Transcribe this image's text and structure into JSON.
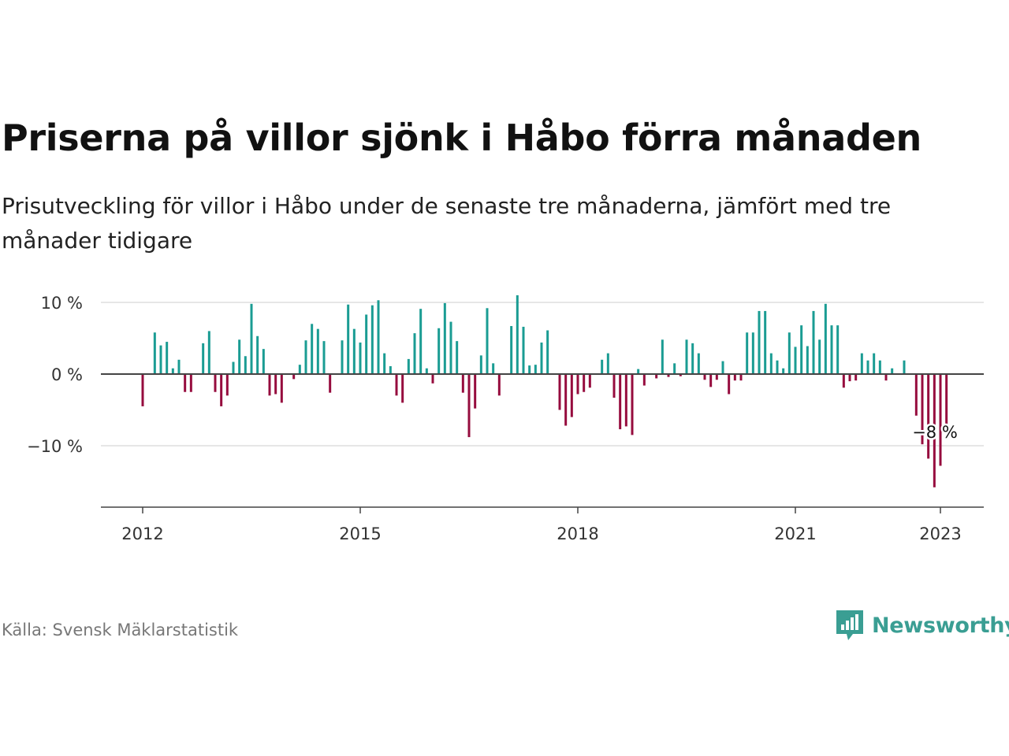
{
  "title": "Priserna på villor sjönk i Håbo förra månaden",
  "subtitle": "Prisutveckling för villor i Håbo under de senaste tre månaderna, jämfört med tre månader tidigare",
  "source": "Källa: Svensk Mäklarstatistik",
  "brand": {
    "name": "Newsworthy",
    "icon": "newsworthy-logo-icon",
    "color": "#3a9e93"
  },
  "colors": {
    "positive": "#1a9c93",
    "negative": "#960c3e",
    "baseline": "#444444",
    "grid": "#dddddd",
    "axis_text": "#333333"
  },
  "chart_data": {
    "type": "bar",
    "x_start": "2012-01",
    "x_end": "2023-01",
    "xticks": [
      "2012",
      "2015",
      "2018",
      "2021",
      "2023"
    ],
    "yticks": [
      "10 %",
      "0 %",
      "−10 %"
    ],
    "ylim": [
      -18.5,
      11.5
    ],
    "annotation": {
      "label": "−8 %",
      "month": "2023-01",
      "value": -8
    },
    "values": [
      -4.5,
      null,
      5.8,
      4,
      4.5,
      0.8,
      2,
      -2.5,
      -2.5,
      null,
      4.3,
      6,
      -2.5,
      -4.5,
      -3,
      1.7,
      4.8,
      2.5,
      9.8,
      5.3,
      3.5,
      -3,
      -2.8,
      -4,
      null,
      -0.7,
      1.3,
      4.7,
      7,
      6.3,
      4.6,
      -2.6,
      null,
      4.7,
      9.7,
      6.3,
      4.4,
      8.3,
      9.6,
      10.3,
      2.9,
      1.1,
      -3,
      -4,
      2.1,
      5.7,
      9.1,
      0.8,
      -1.3,
      6.4,
      9.9,
      7.3,
      4.6,
      -2.6,
      -8.8,
      -4.8,
      2.6,
      9.2,
      1.5,
      -3,
      null,
      6.7,
      11,
      6.6,
      1.2,
      1.3,
      4.4,
      6.1,
      null,
      -5,
      -7.2,
      -6,
      -2.8,
      -2.5,
      -1.9,
      null,
      2,
      2.9,
      -3.3,
      -7.7,
      -7.3,
      -8.5,
      0.7,
      -1.6,
      null,
      -0.6,
      4.8,
      -0.4,
      1.5,
      -0.3,
      4.8,
      4.3,
      2.9,
      -0.8,
      -1.8,
      -0.8,
      1.8,
      -2.8,
      -0.9,
      -0.9,
      5.8,
      5.8,
      8.8,
      8.8,
      2.9,
      1.9,
      0.8,
      5.8,
      3.8,
      6.8,
      3.9,
      8.8,
      4.8,
      9.8,
      6.8,
      6.8,
      -1.9,
      -1,
      -0.9,
      2.9,
      1.9,
      2.9,
      1.9,
      -0.9,
      0.8,
      null,
      1.9,
      null,
      -5.8,
      -9.8,
      -11.8,
      -15.8,
      -12.8,
      -8
    ]
  }
}
